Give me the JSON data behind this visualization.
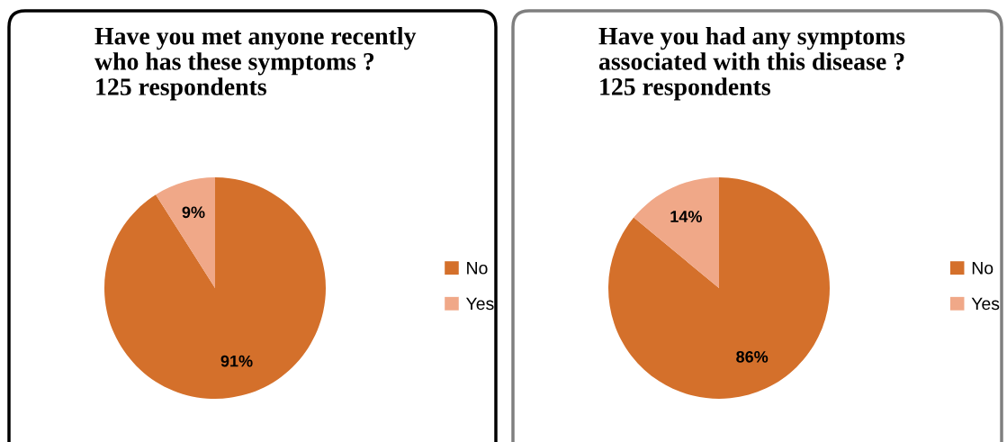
{
  "chart_data": [
    {
      "type": "pie",
      "title": "Have you met anyone recently\nwho has these symptoms ?\n125 respondents",
      "categories": [
        "No",
        "Yes"
      ],
      "values": [
        91,
        9
      ],
      "colors": [
        "#d4702b",
        "#f0a888"
      ],
      "value_labels": [
        "91%",
        "9%"
      ],
      "legend": "right"
    },
    {
      "type": "pie",
      "title": "Have you had any symptoms\nassociated with this disease ?\n125 respondents",
      "categories": [
        "No",
        "Yes"
      ],
      "values": [
        86,
        14
      ],
      "colors": [
        "#d4702b",
        "#f0a888"
      ],
      "value_labels": [
        "86%",
        "14%"
      ],
      "legend": "right"
    }
  ]
}
